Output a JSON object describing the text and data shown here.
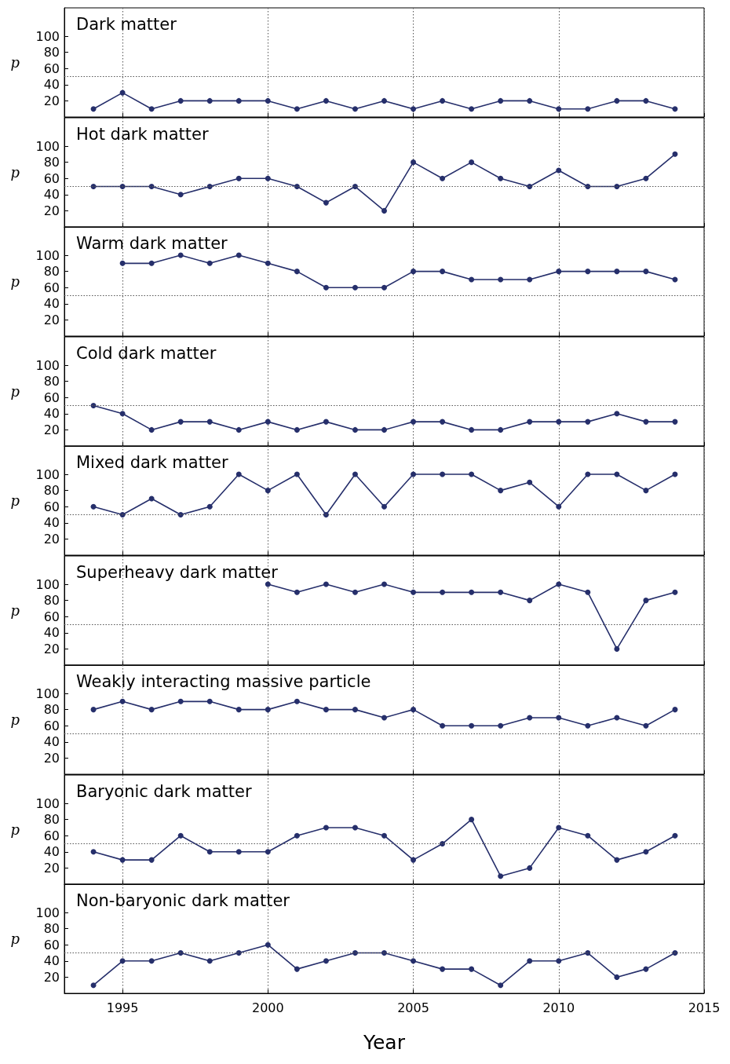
{
  "chart_data": [
    {
      "type": "line",
      "title": "Dark matter",
      "ylabel": "p",
      "x": [
        1994,
        1995,
        1996,
        1997,
        1998,
        1999,
        2000,
        2001,
        2002,
        2003,
        2004,
        2005,
        2006,
        2007,
        2008,
        2009,
        2010,
        2011,
        2012,
        2013,
        2014
      ],
      "values": [
        10,
        30,
        10,
        20,
        20,
        20,
        20,
        10,
        20,
        10,
        20,
        10,
        20,
        10,
        20,
        20,
        10,
        10,
        20,
        20,
        10
      ],
      "color": "#262f6b",
      "marker": "circle",
      "xlim": [
        1993,
        2015
      ],
      "xticks": [
        1995,
        2000,
        2005,
        2010,
        2015
      ],
      "ylim": [
        0,
        135
      ],
      "yticks": [
        20,
        40,
        60,
        80,
        100
      ],
      "grid": "x",
      "ref_lines": [
        {
          "axis": "y",
          "value": 50
        }
      ],
      "tick_labels": "y"
    },
    {
      "type": "line",
      "title": "Hot dark matter",
      "ylabel": "p",
      "x": [
        1994,
        1995,
        1996,
        1997,
        1998,
        1999,
        2000,
        2001,
        2002,
        2003,
        2004,
        2005,
        2006,
        2007,
        2008,
        2009,
        2010,
        2011,
        2012,
        2013,
        2014
      ],
      "values": [
        50,
        50,
        50,
        40,
        50,
        60,
        60,
        50,
        30,
        50,
        20,
        80,
        60,
        80,
        60,
        50,
        70,
        50,
        50,
        60,
        90
      ],
      "color": "#262f6b",
      "marker": "circle",
      "xlim": [
        1993,
        2015
      ],
      "xticks": [
        1995,
        2000,
        2005,
        2010,
        2015
      ],
      "ylim": [
        0,
        135
      ],
      "yticks": [
        20,
        40,
        60,
        80,
        100
      ],
      "grid": "x",
      "ref_lines": [
        {
          "axis": "y",
          "value": 50
        }
      ],
      "tick_labels": "y"
    },
    {
      "type": "line",
      "title": "Warm dark matter",
      "ylabel": "p",
      "x": [
        1995,
        1996,
        1997,
        1998,
        1999,
        2000,
        2001,
        2002,
        2003,
        2004,
        2005,
        2006,
        2007,
        2008,
        2009,
        2010,
        2011,
        2012,
        2013,
        2014
      ],
      "values": [
        90,
        90,
        100,
        90,
        100,
        90,
        80,
        60,
        60,
        60,
        80,
        80,
        70,
        70,
        70,
        80,
        80,
        80,
        80,
        70
      ],
      "color": "#262f6b",
      "marker": "circle",
      "xlim": [
        1993,
        2015
      ],
      "xticks": [
        1995,
        2000,
        2005,
        2010,
        2015
      ],
      "ylim": [
        0,
        135
      ],
      "yticks": [
        20,
        40,
        60,
        80,
        100
      ],
      "grid": "x",
      "ref_lines": [
        {
          "axis": "y",
          "value": 50
        }
      ],
      "tick_labels": "y"
    },
    {
      "type": "line",
      "title": "Cold dark matter",
      "ylabel": "p",
      "x": [
        1994,
        1995,
        1996,
        1997,
        1998,
        1999,
        2000,
        2001,
        2002,
        2003,
        2004,
        2005,
        2006,
        2007,
        2008,
        2009,
        2010,
        2011,
        2012,
        2013,
        2014
      ],
      "values": [
        50,
        40,
        20,
        30,
        30,
        20,
        30,
        20,
        30,
        20,
        20,
        30,
        30,
        20,
        20,
        30,
        30,
        30,
        40,
        30,
        30
      ],
      "color": "#262f6b",
      "marker": "circle",
      "xlim": [
        1993,
        2015
      ],
      "xticks": [
        1995,
        2000,
        2005,
        2010,
        2015
      ],
      "ylim": [
        0,
        135
      ],
      "yticks": [
        20,
        40,
        60,
        80,
        100
      ],
      "grid": "x",
      "ref_lines": [
        {
          "axis": "y",
          "value": 50
        }
      ],
      "tick_labels": "y"
    },
    {
      "type": "line",
      "title": "Mixed dark matter",
      "ylabel": "p",
      "x": [
        1994,
        1995,
        1996,
        1997,
        1998,
        1999,
        2000,
        2001,
        2002,
        2003,
        2004,
        2005,
        2006,
        2007,
        2008,
        2009,
        2010,
        2011,
        2012,
        2013,
        2014
      ],
      "values": [
        60,
        50,
        70,
        50,
        60,
        100,
        80,
        100,
        50,
        100,
        60,
        100,
        100,
        100,
        80,
        90,
        60,
        100,
        100,
        80,
        100
      ],
      "color": "#262f6b",
      "marker": "circle",
      "xlim": [
        1993,
        2015
      ],
      "xticks": [
        1995,
        2000,
        2005,
        2010,
        2015
      ],
      "ylim": [
        0,
        135
      ],
      "yticks": [
        20,
        40,
        60,
        80,
        100
      ],
      "grid": "x",
      "ref_lines": [
        {
          "axis": "y",
          "value": 50
        }
      ],
      "tick_labels": "y"
    },
    {
      "type": "line",
      "title": "Superheavy dark matter",
      "ylabel": "p",
      "x": [
        2000,
        2001,
        2002,
        2003,
        2004,
        2005,
        2006,
        2007,
        2008,
        2009,
        2010,
        2011,
        2012,
        2013,
        2014
      ],
      "values": [
        100,
        90,
        100,
        90,
        100,
        90,
        90,
        90,
        90,
        80,
        100,
        90,
        20,
        80,
        90
      ],
      "color": "#262f6b",
      "marker": "circle",
      "xlim": [
        1993,
        2015
      ],
      "xticks": [
        1995,
        2000,
        2005,
        2010,
        2015
      ],
      "ylim": [
        0,
        135
      ],
      "yticks": [
        20,
        40,
        60,
        80,
        100
      ],
      "grid": "x",
      "ref_lines": [
        {
          "axis": "y",
          "value": 50
        }
      ],
      "tick_labels": "y"
    },
    {
      "type": "line",
      "title": "Weakly interacting massive particle",
      "ylabel": "p",
      "x": [
        1994,
        1995,
        1996,
        1997,
        1998,
        1999,
        2000,
        2001,
        2002,
        2003,
        2004,
        2005,
        2006,
        2007,
        2008,
        2009,
        2010,
        2011,
        2012,
        2013,
        2014
      ],
      "values": [
        80,
        90,
        80,
        90,
        90,
        80,
        80,
        90,
        80,
        80,
        70,
        80,
        60,
        60,
        60,
        70,
        70,
        60,
        70,
        60,
        80
      ],
      "color": "#262f6b",
      "marker": "circle",
      "xlim": [
        1993,
        2015
      ],
      "xticks": [
        1995,
        2000,
        2005,
        2010,
        2015
      ],
      "ylim": [
        0,
        135
      ],
      "yticks": [
        20,
        40,
        60,
        80,
        100
      ],
      "grid": "x",
      "ref_lines": [
        {
          "axis": "y",
          "value": 50
        }
      ],
      "tick_labels": "y"
    },
    {
      "type": "line",
      "title": "Baryonic dark matter",
      "ylabel": "p",
      "x": [
        1994,
        1995,
        1996,
        1997,
        1998,
        1999,
        2000,
        2001,
        2002,
        2003,
        2004,
        2005,
        2006,
        2007,
        2008,
        2009,
        2010,
        2011,
        2012,
        2013,
        2014
      ],
      "values": [
        40,
        30,
        30,
        60,
        40,
        40,
        40,
        60,
        70,
        70,
        60,
        30,
        50,
        80,
        10,
        20,
        70,
        60,
        30,
        40,
        60
      ],
      "color": "#262f6b",
      "marker": "circle",
      "xlim": [
        1993,
        2015
      ],
      "xticks": [
        1995,
        2000,
        2005,
        2010,
        2015
      ],
      "ylim": [
        0,
        135
      ],
      "yticks": [
        20,
        40,
        60,
        80,
        100
      ],
      "grid": "x",
      "ref_lines": [
        {
          "axis": "y",
          "value": 50
        }
      ],
      "tick_labels": "y"
    },
    {
      "type": "line",
      "title": "Non-baryonic dark matter",
      "ylabel": "p",
      "xlabel": "Year",
      "x": [
        1994,
        1995,
        1996,
        1997,
        1998,
        1999,
        2000,
        2001,
        2002,
        2003,
        2004,
        2005,
        2006,
        2007,
        2008,
        2009,
        2010,
        2011,
        2012,
        2013,
        2014
      ],
      "values": [
        10,
        40,
        40,
        50,
        40,
        50,
        60,
        30,
        40,
        50,
        50,
        40,
        30,
        30,
        10,
        40,
        40,
        50,
        20,
        30,
        50
      ],
      "color": "#262f6b",
      "marker": "circle",
      "xlim": [
        1993,
        2015
      ],
      "xticks": [
        1995,
        2000,
        2005,
        2010,
        2015
      ],
      "ylim": [
        0,
        135
      ],
      "yticks": [
        20,
        40,
        60,
        80,
        100
      ],
      "grid": "x",
      "ref_lines": [
        {
          "axis": "y",
          "value": 50
        }
      ]
    }
  ]
}
